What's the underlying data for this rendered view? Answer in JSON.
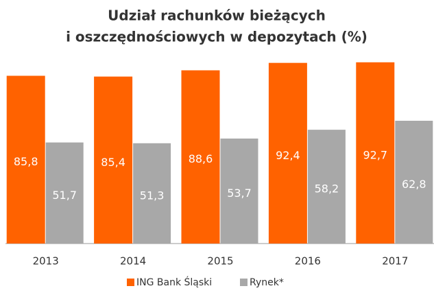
{
  "chart_data": {
    "type": "bar",
    "title": [
      "Udział rachunków bieżących",
      "i oszczędnościowych w depozytach (%)"
    ],
    "categories": [
      "2013",
      "2014",
      "2015",
      "2016",
      "2017"
    ],
    "series": [
      {
        "name": "ING Bank Śląski",
        "color": "#ff6200",
        "values": [
          85.8,
          85.4,
          88.6,
          92.4,
          92.7
        ],
        "value_labels": [
          "85,8",
          "85,4",
          "88,6",
          "92,4",
          "92,7"
        ]
      },
      {
        "name": "Rynek*",
        "color": "#a8a8a8",
        "values": [
          51.7,
          51.3,
          53.7,
          58.2,
          62.8
        ],
        "value_labels": [
          "51,7",
          "51,3",
          "53,7",
          "58,2",
          "62,8"
        ]
      }
    ],
    "ylim": [
      0,
      100
    ]
  }
}
